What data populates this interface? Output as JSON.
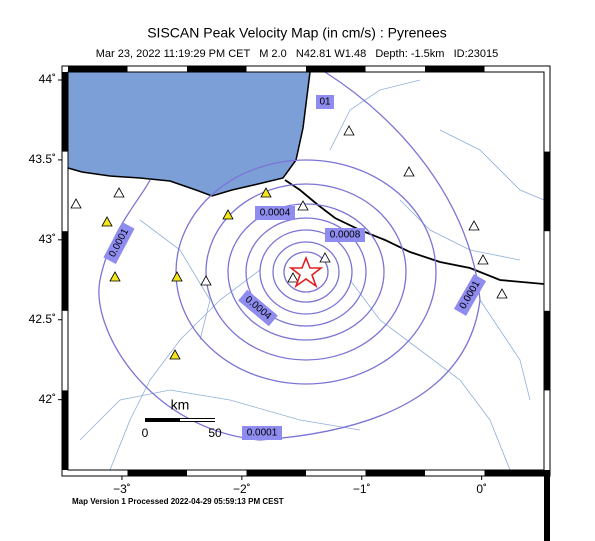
{
  "header": {
    "title": "SISCAN Peak Velocity Map (in cm/s) : Pyrenees",
    "subtitle": "Mar 23, 2022 11:19:29 PM CET   M 2.0   N42.81 W1.48   Depth: -1.5km   ID:23015"
  },
  "map": {
    "xlim": [
      -3.45,
      0.52
    ],
    "ylim": [
      41.56,
      44.05
    ],
    "xticks": [
      {
        "value": -3,
        "label": "−3˚"
      },
      {
        "value": -2,
        "label": "−2˚"
      },
      {
        "value": -1,
        "label": "−1˚"
      },
      {
        "value": 0,
        "label": "0˚"
      }
    ],
    "yticks": [
      {
        "value": 42,
        "label": "42˚"
      },
      {
        "value": 42.5,
        "label": "42.5˚"
      },
      {
        "value": 43,
        "label": "43˚"
      },
      {
        "value": 43.5,
        "label": "43.5˚"
      },
      {
        "value": 44,
        "label": "44˚"
      }
    ],
    "contour_labels": [
      "01",
      "0.0004",
      "0.0008",
      "0.0001",
      "0.0004",
      "0.0001",
      "0.0001"
    ],
    "scale_bar": {
      "title": "km",
      "labels": [
        "0",
        "50"
      ]
    }
  },
  "footer": "Map Version 1 Processed 2022-04-29 05:59:13 PM CEST"
}
